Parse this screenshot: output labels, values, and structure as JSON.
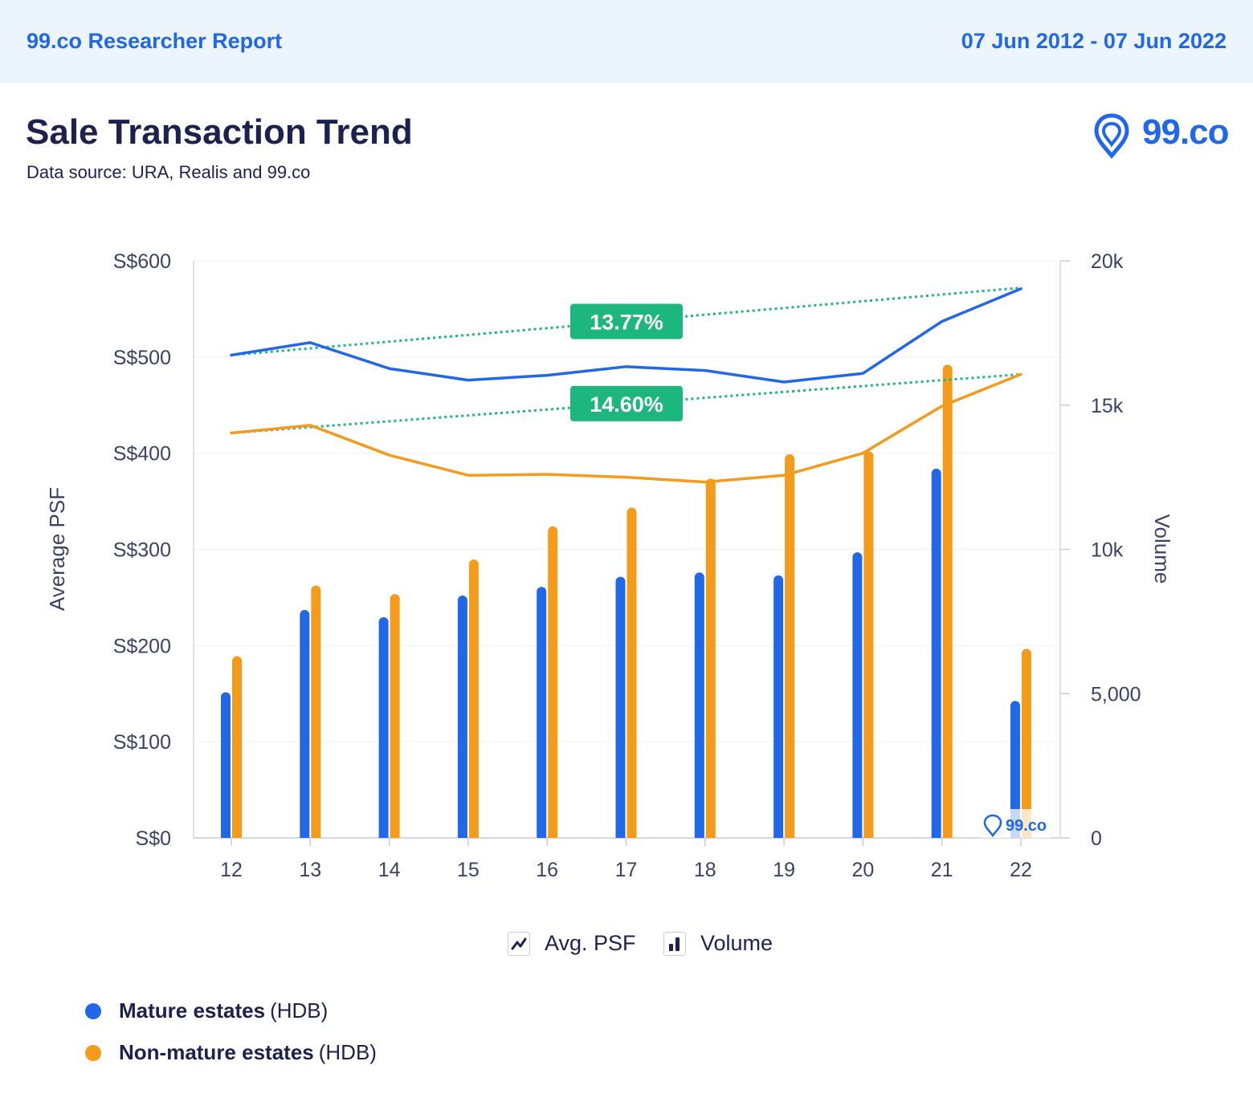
{
  "header": {
    "report_title": "99.co Researcher Report",
    "date_range": "07 Jun 2012 - 07 Jun 2022"
  },
  "title": "Sale Transaction Trend",
  "subtitle": "Data source: URA, Realis and 99.co",
  "logo": {
    "text": "99.co",
    "icon": "location-pin-icon"
  },
  "watermark": {
    "text": "99.co",
    "icon": "location-pin-icon"
  },
  "colors": {
    "mature": "#2168e8",
    "non_mature": "#f49b1c",
    "trend": "#1eb67f",
    "text": "#1c2150",
    "axis_text": "#3b4263"
  },
  "chart_legend": {
    "line_label": "Avg. PSF",
    "bar_label": "Volume",
    "line_icon": "line-chart-icon",
    "bar_icon": "bar-chart-icon"
  },
  "series_legend": [
    {
      "bold": "Mature estates",
      "suffix": "(HDB)",
      "color": "#2168e8"
    },
    {
      "bold": "Non-mature estates",
      "suffix": "(HDB)",
      "color": "#f49b1c"
    }
  ],
  "chart_data": {
    "type": "bar",
    "categories": [
      "12",
      "13",
      "14",
      "15",
      "16",
      "17",
      "18",
      "19",
      "20",
      "21",
      "22"
    ],
    "ylabel": "Average PSF",
    "y2label": "Volume",
    "ylim": [
      0,
      600
    ],
    "y2lim": [
      0,
      20000
    ],
    "yticks": [
      "S$0",
      "S$100",
      "S$200",
      "S$300",
      "S$400",
      "S$500",
      "S$600"
    ],
    "y2ticks": [
      "0",
      "5,000",
      "10k",
      "15k",
      "20k"
    ],
    "grid": true,
    "lines": [
      {
        "name": "Mature estates",
        "color": "#2168e8",
        "values": [
          502,
          515,
          488,
          476,
          481,
          490,
          486,
          474,
          483,
          537,
          571
        ]
      },
      {
        "name": "Non-mature estates",
        "color": "#f49b1c",
        "values": [
          421,
          429,
          398,
          377,
          378,
          375,
          370,
          377,
          400,
          449,
          482
        ]
      }
    ],
    "bars": [
      {
        "name": "Mature estates",
        "color": "#2168e8",
        "values": [
          5050,
          7900,
          7650,
          8400,
          8700,
          9050,
          9200,
          9100,
          9900,
          12800,
          4750
        ]
      },
      {
        "name": "Non-mature estates",
        "color": "#f49b1c",
        "values": [
          6300,
          8750,
          8450,
          9650,
          10800,
          11450,
          12450,
          13300,
          13400,
          16400,
          6550
        ]
      }
    ],
    "trendlines": [
      {
        "label": "13.77%",
        "from": 502,
        "to": 572
      },
      {
        "label": "14.60%",
        "from": 421,
        "to": 482
      }
    ]
  }
}
